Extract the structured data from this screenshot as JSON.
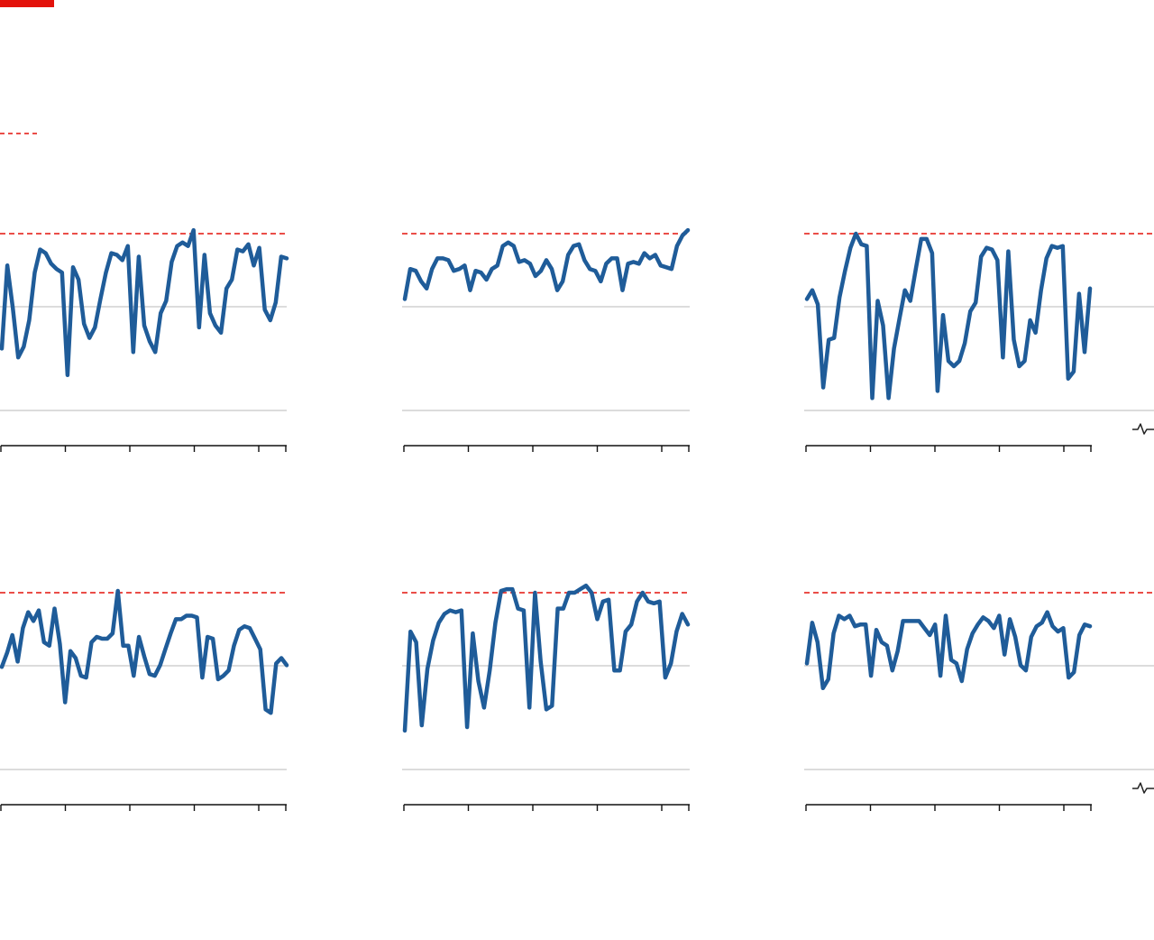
{
  "colors": {
    "accent": "#e3120b",
    "series": "#1f5c99",
    "grid": "#d0d0d0",
    "axis": "#111111"
  },
  "legend": {
    "threshold_icon": "red-dashed-line",
    "break_icon": "axis-break-icon"
  },
  "chart_data": [
    {
      "type": "line",
      "threshold": 1.0,
      "ylim": [
        0,
        1.05
      ],
      "grid": true,
      "values": [
        0.35,
        0.82,
        0.58,
        0.3,
        0.36,
        0.51,
        0.78,
        0.91,
        0.89,
        0.83,
        0.8,
        0.78,
        0.2,
        0.81,
        0.74,
        0.49,
        0.41,
        0.47,
        0.63,
        0.78,
        0.89,
        0.88,
        0.85,
        0.93,
        0.33,
        0.87,
        0.48,
        0.39,
        0.33,
        0.55,
        0.62,
        0.84,
        0.93,
        0.95,
        0.93,
        1.02,
        0.47,
        0.88,
        0.55,
        0.48,
        0.44,
        0.69,
        0.74,
        0.91,
        0.9,
        0.94,
        0.82,
        0.92,
        0.57,
        0.51,
        0.61,
        0.87,
        0.86
      ]
    },
    {
      "type": "line",
      "threshold": 1.0,
      "ylim": [
        0,
        1.05
      ],
      "grid": true,
      "values": [
        0.63,
        0.8,
        0.79,
        0.73,
        0.69,
        0.8,
        0.86,
        0.86,
        0.85,
        0.79,
        0.8,
        0.82,
        0.68,
        0.79,
        0.78,
        0.74,
        0.8,
        0.82,
        0.93,
        0.95,
        0.93,
        0.84,
        0.85,
        0.83,
        0.76,
        0.79,
        0.85,
        0.8,
        0.68,
        0.73,
        0.88,
        0.93,
        0.94,
        0.85,
        0.8,
        0.79,
        0.73,
        0.83,
        0.86,
        0.86,
        0.68,
        0.83,
        0.84,
        0.83,
        0.89,
        0.86,
        0.88,
        0.82,
        0.81,
        0.8,
        0.93,
        0.99,
        1.02
      ]
    },
    {
      "type": "line",
      "threshold": 1.0,
      "ylim": [
        0,
        1.05
      ],
      "grid": true,
      "values": [
        0.63,
        0.68,
        0.6,
        0.13,
        0.4,
        0.41,
        0.64,
        0.79,
        0.92,
        1.0,
        0.94,
        0.93,
        0.07,
        0.62,
        0.48,
        0.07,
        0.35,
        0.52,
        0.68,
        0.62,
        0.8,
        0.97,
        0.97,
        0.89,
        0.11,
        0.54,
        0.28,
        0.25,
        0.28,
        0.38,
        0.56,
        0.61,
        0.87,
        0.92,
        0.91,
        0.85,
        0.3,
        0.9,
        0.4,
        0.25,
        0.28,
        0.51,
        0.44,
        0.68,
        0.86,
        0.93,
        0.92,
        0.93,
        0.18,
        0.22,
        0.66,
        0.33,
        0.69
      ]
    },
    {
      "type": "line",
      "threshold": 1.0,
      "ylim": [
        0,
        1.05
      ],
      "grid": true,
      "values": [
        0.58,
        0.66,
        0.76,
        0.61,
        0.8,
        0.89,
        0.84,
        0.9,
        0.72,
        0.7,
        0.91,
        0.71,
        0.38,
        0.67,
        0.63,
        0.53,
        0.52,
        0.72,
        0.75,
        0.74,
        0.74,
        0.77,
        1.01,
        0.7,
        0.7,
        0.53,
        0.75,
        0.64,
        0.54,
        0.53,
        0.59,
        0.68,
        0.77,
        0.85,
        0.85,
        0.87,
        0.87,
        0.86,
        0.52,
        0.75,
        0.74,
        0.51,
        0.53,
        0.56,
        0.7,
        0.79,
        0.81,
        0.8,
        0.74,
        0.68,
        0.34,
        0.32,
        0.6,
        0.63,
        0.59
      ]
    },
    {
      "type": "line",
      "threshold": 1.0,
      "ylim": [
        0,
        1.05
      ],
      "grid": true,
      "values": [
        0.22,
        0.78,
        0.72,
        0.25,
        0.57,
        0.73,
        0.83,
        0.88,
        0.9,
        0.89,
        0.9,
        0.24,
        0.77,
        0.5,
        0.35,
        0.56,
        0.83,
        1.01,
        1.02,
        1.02,
        0.91,
        0.9,
        0.35,
        1.0,
        0.61,
        0.34,
        0.36,
        0.91,
        0.91,
        1.0,
        1.0,
        1.02,
        1.04,
        1.0,
        0.85,
        0.95,
        0.96,
        0.56,
        0.56,
        0.78,
        0.82,
        0.95,
        1.0,
        0.95,
        0.94,
        0.95,
        0.52,
        0.6,
        0.78,
        0.88,
        0.82
      ]
    },
    {
      "type": "line",
      "threshold": 1.0,
      "ylim": [
        0,
        1.05
      ],
      "grid": true,
      "values": [
        0.6,
        0.83,
        0.72,
        0.46,
        0.51,
        0.77,
        0.87,
        0.85,
        0.87,
        0.81,
        0.82,
        0.82,
        0.53,
        0.79,
        0.72,
        0.7,
        0.56,
        0.67,
        0.84,
        0.84,
        0.84,
        0.84,
        0.8,
        0.76,
        0.82,
        0.53,
        0.87,
        0.62,
        0.6,
        0.5,
        0.68,
        0.77,
        0.82,
        0.86,
        0.84,
        0.8,
        0.87,
        0.65,
        0.85,
        0.75,
        0.59,
        0.56,
        0.75,
        0.81,
        0.83,
        0.89,
        0.81,
        0.78,
        0.8,
        0.52,
        0.55,
        0.76,
        0.82,
        0.81
      ]
    }
  ]
}
